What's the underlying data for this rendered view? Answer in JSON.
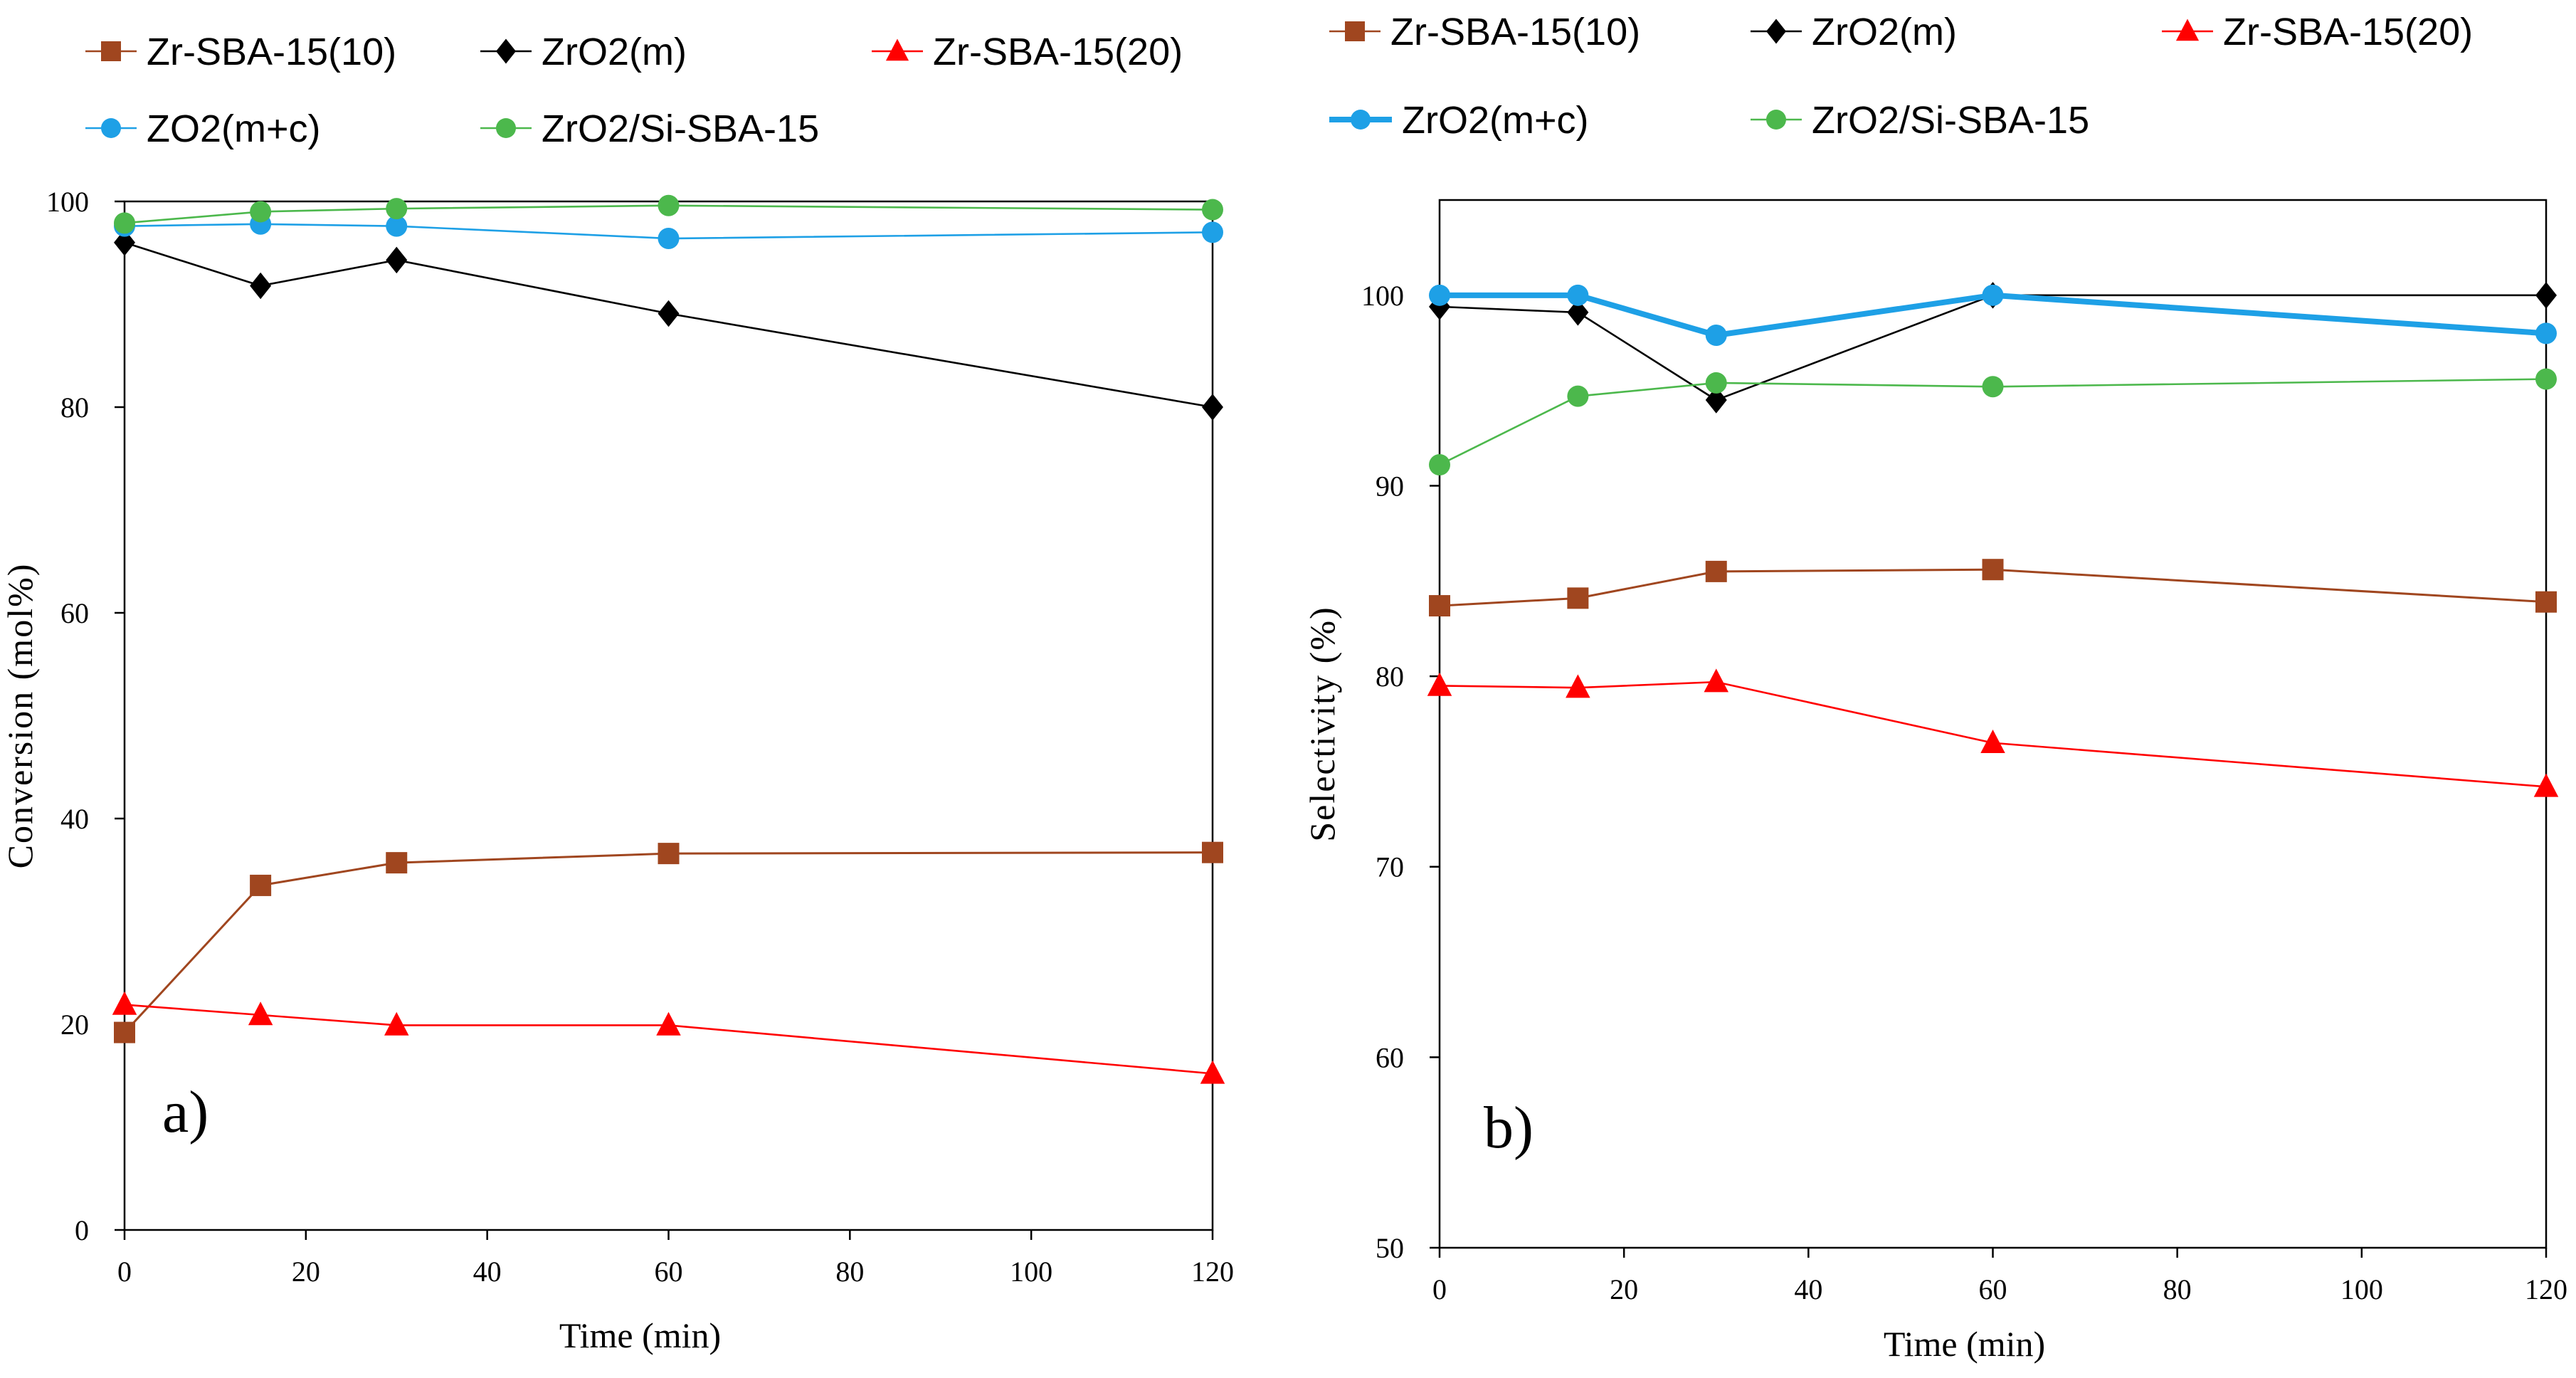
{
  "chart_data": [
    {
      "type": "line",
      "panel_label": "a)",
      "xlabel": "Time (min)",
      "ylabel": "Conversion (mol%)",
      "xlim": [
        0,
        120
      ],
      "ylim": [
        0,
        100
      ],
      "xticks": [
        0,
        20,
        40,
        60,
        80,
        100,
        120
      ],
      "yticks": [
        0,
        20,
        40,
        60,
        80,
        100
      ],
      "grid": false,
      "legend": [
        {
          "label": "Zr-SBA-15(10)",
          "series": 0
        },
        {
          "label": "ZrO2(m)",
          "series": 1
        },
        {
          "label": "Zr-SBA-15(20)",
          "series": 2
        },
        {
          "label": "ZO2(m+c)",
          "series": 3
        },
        {
          "label": "ZrO2/Si-SBA-15",
          "series": 4
        }
      ],
      "x": [
        0,
        15,
        30,
        60,
        120
      ],
      "series": [
        {
          "name": "Zr-SBA-15(10)",
          "color": "#a0461f",
          "marker": "square",
          "values": [
            19.2,
            33.5,
            35.7,
            36.6,
            36.7
          ]
        },
        {
          "name": "ZrO2(m)",
          "color": "#000000",
          "marker": "diamond",
          "values": [
            96.0,
            91.8,
            94.3,
            89.1,
            80.0
          ]
        },
        {
          "name": "Zr-SBA-15(20)",
          "color": "#ff0000",
          "marker": "triangle",
          "values": [
            21.9,
            20.9,
            19.9,
            19.9,
            15.2
          ]
        },
        {
          "name": "ZO2(m+c)",
          "color": "#1ea0e6",
          "marker": "circle",
          "values": [
            97.6,
            97.8,
            97.6,
            96.4,
            97.0
          ]
        },
        {
          "name": "ZrO2/Si-SBA-15",
          "color": "#4cb84c",
          "marker": "circle",
          "values": [
            97.9,
            99.0,
            99.3,
            99.6,
            99.2
          ]
        }
      ]
    },
    {
      "type": "line",
      "panel_label": "b)",
      "xlabel": "Time (min)",
      "ylabel": "Selectivity (%)",
      "xlim": [
        0,
        120
      ],
      "ylim": [
        50,
        105
      ],
      "xticks": [
        0,
        20,
        40,
        60,
        80,
        100,
        120
      ],
      "yticks": [
        50,
        60,
        70,
        80,
        90,
        100
      ],
      "grid": false,
      "legend": [
        {
          "label": "Zr-SBA-15(10)",
          "series": 0
        },
        {
          "label": "ZrO2(m)",
          "series": 1
        },
        {
          "label": "Zr-SBA-15(20)",
          "series": 2
        },
        {
          "label": "ZrO2(m+c)",
          "series": 3
        },
        {
          "label": "ZrO2/Si-SBA-15",
          "series": 4
        }
      ],
      "x": [
        0,
        15,
        30,
        60,
        120
      ],
      "series": [
        {
          "name": "Zr-SBA-15(10)",
          "color": "#a0461f",
          "marker": "square",
          "values": [
            83.7,
            84.1,
            85.5,
            85.6,
            83.9
          ]
        },
        {
          "name": "ZrO2(m)",
          "color": "#000000",
          "marker": "diamond",
          "values": [
            99.4,
            99.1,
            94.5,
            100.0,
            100.0
          ]
        },
        {
          "name": "Zr-SBA-15(20)",
          "color": "#ff0000",
          "marker": "triangle",
          "values": [
            79.5,
            79.4,
            79.7,
            76.5,
            74.2
          ]
        },
        {
          "name": "ZrO2(m+c)",
          "color": "#1ea0e6",
          "marker": "circle",
          "values": [
            100.0,
            100.0,
            97.9,
            100.0,
            98.0
          ]
        },
        {
          "name": "ZrO2/Si-SBA-15",
          "color": "#4cb84c",
          "marker": "circle",
          "values": [
            91.1,
            94.7,
            95.4,
            95.2,
            95.6
          ]
        }
      ]
    }
  ]
}
